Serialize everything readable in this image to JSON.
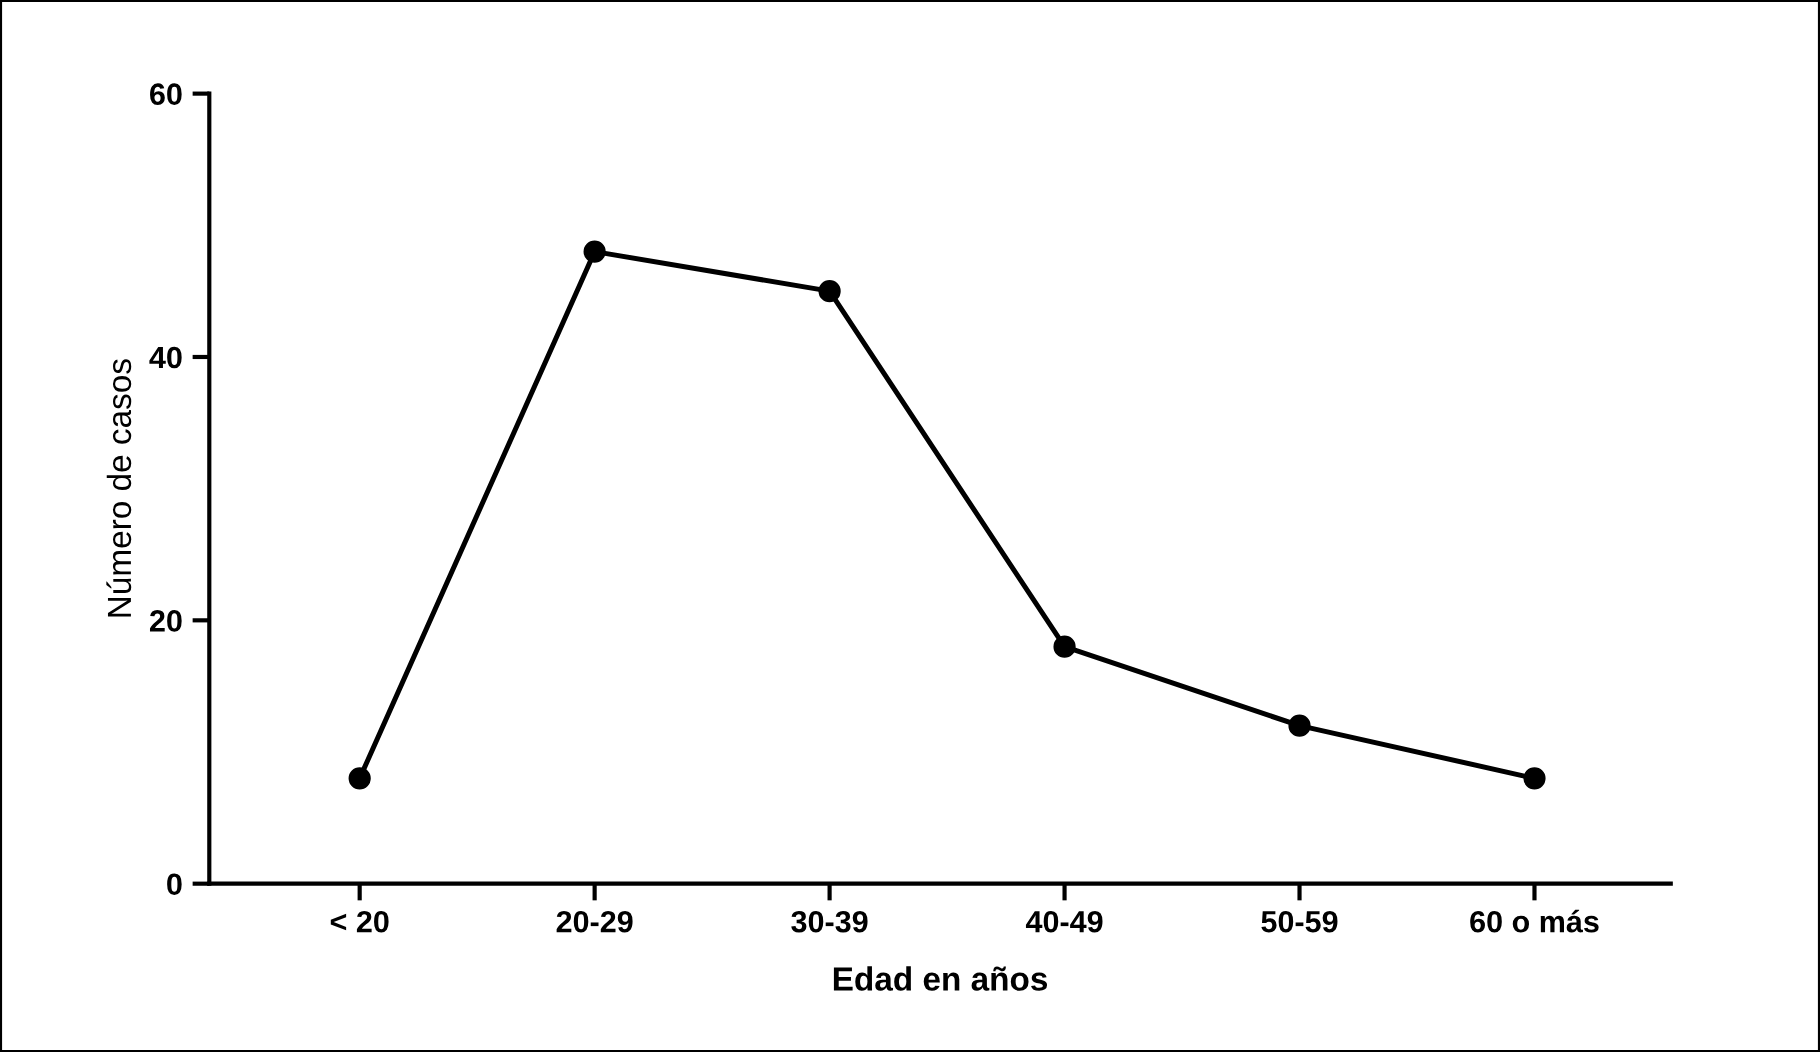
{
  "chart_data": {
    "type": "line",
    "xlabel": "Edad en años",
    "ylabel": "Número de casos",
    "categories": [
      "< 20",
      "20-29",
      "30-39",
      "40-49",
      "50-59",
      "60 o más"
    ],
    "series": [
      {
        "color": "#000000",
        "values": [
          8,
          48,
          45,
          18,
          12,
          8
        ]
      }
    ],
    "ylim": [
      0,
      60
    ],
    "yticks": [
      0,
      20,
      40,
      60
    ],
    "marker": "circle",
    "line_style": "solid",
    "grid": false,
    "legend": false
  }
}
